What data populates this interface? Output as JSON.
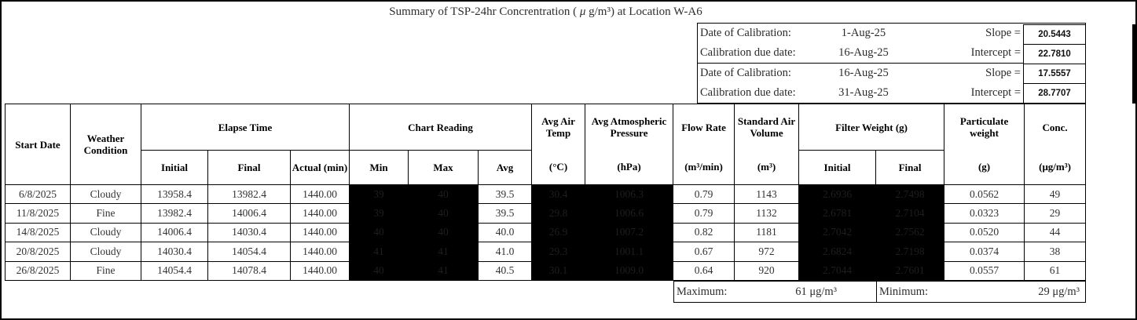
{
  "title": {
    "part1": "Summary of TSP-24hr Concrentration ( ",
    "mu": "μ",
    "part2": " g/m³) at Location W-A6"
  },
  "calibration": {
    "rows": [
      {
        "label": "Date of Calibration:",
        "date": "1-Aug-25",
        "param": "Slope =",
        "value": "20.5443"
      },
      {
        "label": "Calibration due date:",
        "date": "16-Aug-25",
        "param": "Intercept =",
        "value": "22.7810"
      },
      {
        "label": "Date of Calibration:",
        "date": "16-Aug-25",
        "param": "Slope =",
        "value": "17.5557"
      },
      {
        "label": "Calibration due date:",
        "date": "31-Aug-25",
        "param": "Intercept =",
        "value": "28.7707"
      }
    ]
  },
  "table": {
    "headers": {
      "start_date": "Start Date",
      "weather": "Weather Condition",
      "elapse_time": "Elapse Time",
      "elapse_initial": "Initial",
      "elapse_final": "Final",
      "elapse_actual": "Actual (min)",
      "chart_reading": "Chart Reading",
      "chart_min": "Min",
      "chart_max": "Max",
      "chart_avg": "Avg",
      "avg_air_temp": "Avg Air Temp",
      "avg_air_temp_unit": "(°C)",
      "avg_atm_pressure": "Avg Atmospheric Pressure",
      "avg_atm_pressure_unit": "(hPa)",
      "flow_rate": "Flow Rate",
      "flow_rate_unit": "(m³/min)",
      "std_air_volume": "Standard Air Volume",
      "std_air_volume_unit": "(m³)",
      "filter_weight": "Filter Weight (g)",
      "filter_initial": "Initial",
      "filter_final": "Final",
      "particulate": "Particulate weight",
      "particulate_unit": "(g)",
      "conc": "Conc.",
      "conc_unit": "(μg/m³)"
    },
    "column_order": [
      "start_date",
      "weather",
      "elapse_initial",
      "elapse_final",
      "elapse_actual",
      "chart_min",
      "chart_max",
      "chart_avg",
      "temp",
      "pressure",
      "flow_rate",
      "std_volume",
      "filter_initial",
      "filter_final",
      "particulate",
      "conc"
    ],
    "redacted_columns": [
      "chart_min",
      "chart_max",
      "temp",
      "pressure",
      "filter_initial",
      "filter_final"
    ],
    "rows": [
      {
        "start_date": "6/8/2025",
        "weather": "Cloudy",
        "elapse_initial": "13958.4",
        "elapse_final": "13982.4",
        "elapse_actual": "1440.00",
        "chart_min": "39",
        "chart_max": "40",
        "chart_avg": "39.5",
        "temp": "30.4",
        "pressure": "1006.3",
        "flow_rate": "0.79",
        "std_volume": "1143",
        "filter_initial": "2.6936",
        "filter_final": "2.7498",
        "particulate": "0.0562",
        "conc": "49"
      },
      {
        "start_date": "11/8/2025",
        "weather": "Fine",
        "elapse_initial": "13982.4",
        "elapse_final": "14006.4",
        "elapse_actual": "1440.00",
        "chart_min": "39",
        "chart_max": "40",
        "chart_avg": "39.5",
        "temp": "29.8",
        "pressure": "1006.6",
        "flow_rate": "0.79",
        "std_volume": "1132",
        "filter_initial": "2.6781",
        "filter_final": "2.7104",
        "particulate": "0.0323",
        "conc": "29"
      },
      {
        "start_date": "14/8/2025",
        "weather": "Cloudy",
        "elapse_initial": "14006.4",
        "elapse_final": "14030.4",
        "elapse_actual": "1440.00",
        "chart_min": "40",
        "chart_max": "40",
        "chart_avg": "40.0",
        "temp": "26.9",
        "pressure": "1007.2",
        "flow_rate": "0.82",
        "std_volume": "1181",
        "filter_initial": "2.7042",
        "filter_final": "2.7562",
        "particulate": "0.0520",
        "conc": "44"
      },
      {
        "start_date": "20/8/2025",
        "weather": "Cloudy",
        "elapse_initial": "14030.4",
        "elapse_final": "14054.4",
        "elapse_actual": "1440.00",
        "chart_min": "41",
        "chart_max": "41",
        "chart_avg": "41.0",
        "temp": "29.3",
        "pressure": "1001.1",
        "flow_rate": "0.67",
        "std_volume": "972",
        "filter_initial": "2.6824",
        "filter_final": "2.7198",
        "particulate": "0.0374",
        "conc": "38"
      },
      {
        "start_date": "26/8/2025",
        "weather": "Fine",
        "elapse_initial": "14054.4",
        "elapse_final": "14078.4",
        "elapse_actual": "1440.00",
        "chart_min": "40",
        "chart_max": "41",
        "chart_avg": "40.5",
        "temp": "30.1",
        "pressure": "1009.0",
        "flow_rate": "0.64",
        "std_volume": "920",
        "filter_initial": "2.7044",
        "filter_final": "2.7601",
        "particulate": "0.0557",
        "conc": "61"
      }
    ]
  },
  "footer": {
    "maximum_label": "Maximum:",
    "maximum_value": "61 μg/m³",
    "minimum_label": "Minimum:",
    "minimum_value": "29 μg/m³"
  }
}
